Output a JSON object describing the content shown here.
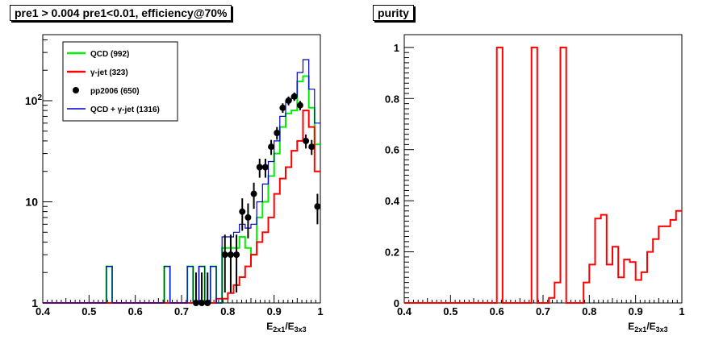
{
  "chart_data": [
    {
      "type": "step",
      "title": "pre1 > 0.004  pre1<0.01, efficiency@70%",
      "xlabel": "E_{2x1}/E_{3x3}",
      "xlim": [
        0.4,
        1.0
      ],
      "ylim": [
        1,
        450
      ],
      "yscale": "log",
      "x_ticks": [
        "0.4",
        "0.5",
        "0.6",
        "0.7",
        "0.8",
        "0.9",
        "1"
      ],
      "y_ticks": [
        "1",
        "10",
        "10^2"
      ],
      "bin_width": 0.0125,
      "legend": {
        "placement": "top-left",
        "entries": [
          "QCD (992)",
          "γ-jet (323)",
          "pp2006 (650)",
          "QCD + γ-jet (1316)"
        ]
      },
      "series": [
        {
          "name": "QCD (992)",
          "color": "#00ee00",
          "style": "step",
          "x": [
            0.4,
            0.5375,
            0.55,
            0.5625,
            0.6625,
            0.675,
            0.6875,
            0.7125,
            0.725,
            0.7375,
            0.75,
            0.7625,
            0.775,
            0.7875,
            0.8,
            0.8125,
            0.825,
            0.8375,
            0.85,
            0.8625,
            0.875,
            0.8875,
            0.9,
            0.9125,
            0.925,
            0.9375,
            0.95,
            0.9625,
            0.975,
            0.9875
          ],
          "y": [
            1,
            2.3,
            1,
            1,
            2.3,
            1,
            1,
            2.3,
            1,
            2.3,
            1,
            2.3,
            1,
            3.5,
            3.5,
            3.5,
            4.5,
            3.5,
            3,
            7,
            10,
            18,
            30,
            55,
            75,
            80,
            155,
            175,
            85,
            37
          ]
        },
        {
          "name": "γ-jet (323)",
          "color": "#ff0000",
          "style": "step",
          "x": [
            0.4,
            0.775,
            0.8,
            0.8125,
            0.825,
            0.8375,
            0.85,
            0.8625,
            0.875,
            0.8875,
            0.9,
            0.9125,
            0.925,
            0.9375,
            0.95,
            0.9625,
            0.975,
            0.9875
          ],
          "y": [
            1,
            1.1,
            1.25,
            1.5,
            1.8,
            2.3,
            3,
            4,
            5,
            7,
            12,
            17,
            22,
            32,
            40,
            80,
            55,
            20
          ]
        },
        {
          "name": "QCD + γ-jet (1316)",
          "color": "#0000cc",
          "style": "step",
          "x": [
            0.4,
            0.5375,
            0.55,
            0.5625,
            0.6625,
            0.675,
            0.6875,
            0.7125,
            0.725,
            0.7375,
            0.75,
            0.7625,
            0.775,
            0.7875,
            0.8,
            0.8125,
            0.825,
            0.8375,
            0.85,
            0.8625,
            0.875,
            0.8875,
            0.9,
            0.9125,
            0.925,
            0.9375,
            0.95,
            0.9625,
            0.975,
            0.9875
          ],
          "y": [
            1,
            2.3,
            1,
            1,
            2.3,
            1,
            1,
            2.3,
            1,
            2.3,
            1,
            2.3,
            1,
            4.5,
            4.5,
            5,
            6,
            5.5,
            6,
            10,
            15,
            25,
            40,
            70,
            100,
            110,
            190,
            255,
            130,
            60
          ]
        },
        {
          "name": "pp2006 (650)",
          "color": "#000000",
          "style": "points",
          "x": [
            0.725,
            0.7375,
            0.75,
            0.7875,
            0.8,
            0.8125,
            0.825,
            0.8375,
            0.85,
            0.8625,
            0.875,
            0.8875,
            0.9,
            0.9125,
            0.925,
            0.9375,
            0.95,
            0.9625,
            0.975,
            0.9875
          ],
          "y": [
            1,
            1,
            1,
            3,
            3,
            3,
            8,
            7,
            12,
            22,
            22,
            35,
            48,
            85,
            100,
            110,
            90,
            40,
            35,
            9
          ]
        }
      ]
    },
    {
      "type": "step",
      "title": "purity",
      "xlabel": "E_{2x1}/E_{3x3}",
      "xlim": [
        0.4,
        1.0
      ],
      "ylim": [
        0,
        1.05
      ],
      "yscale": "linear",
      "x_ticks": [
        "0.4",
        "0.5",
        "0.6",
        "0.7",
        "0.8",
        "0.9",
        "1"
      ],
      "y_ticks": [
        "0",
        "0.2",
        "0.4",
        "0.6",
        "0.8",
        "1"
      ],
      "series": [
        {
          "color": "#ff0000",
          "style": "step",
          "x": [
            0.4,
            0.6,
            0.6125,
            0.675,
            0.6875,
            0.7125,
            0.725,
            0.7375,
            0.75,
            0.7875,
            0.8,
            0.8125,
            0.825,
            0.8375,
            0.85,
            0.8625,
            0.875,
            0.8875,
            0.9,
            0.9125,
            0.925,
            0.9375,
            0.95,
            0.9625,
            0.975,
            0.9875
          ],
          "y": [
            0,
            1,
            0,
            1,
            0,
            0.02,
            0.08,
            1,
            0,
            0.08,
            0.15,
            0.33,
            0.345,
            0.15,
            0.22,
            0.1,
            0.17,
            0.16,
            0.09,
            0.12,
            0.2,
            0.25,
            0.3,
            0.3,
            0.325,
            0.36
          ]
        }
      ]
    }
  ]
}
